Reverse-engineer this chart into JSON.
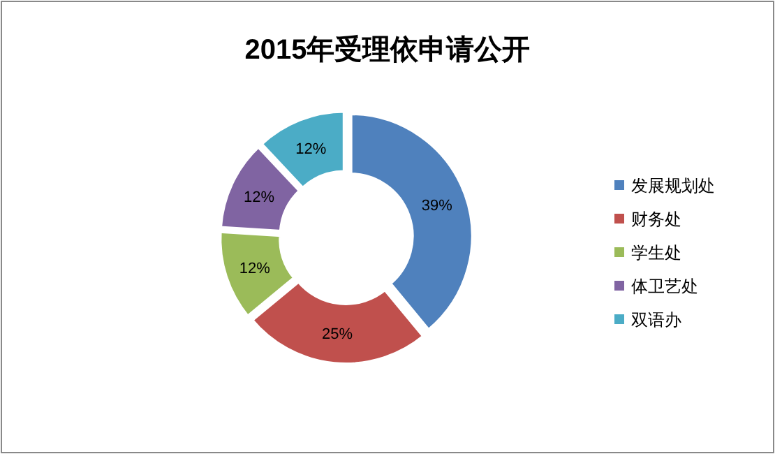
{
  "chart_data": {
    "type": "donut",
    "title": "2015年受理依申请公开",
    "categories": [
      "发展规划处",
      "财务处",
      "学生处",
      "体卫艺处",
      "双语办"
    ],
    "values": [
      39,
      25,
      12,
      12,
      12
    ],
    "colors": [
      "#4f81bd",
      "#c0504d",
      "#9bbb59",
      "#8064a2",
      "#4bacc6"
    ],
    "data_labels": true,
    "value_labels": [
      "39%",
      "25%",
      "12%",
      "12%",
      "12%"
    ],
    "legend": "right"
  }
}
